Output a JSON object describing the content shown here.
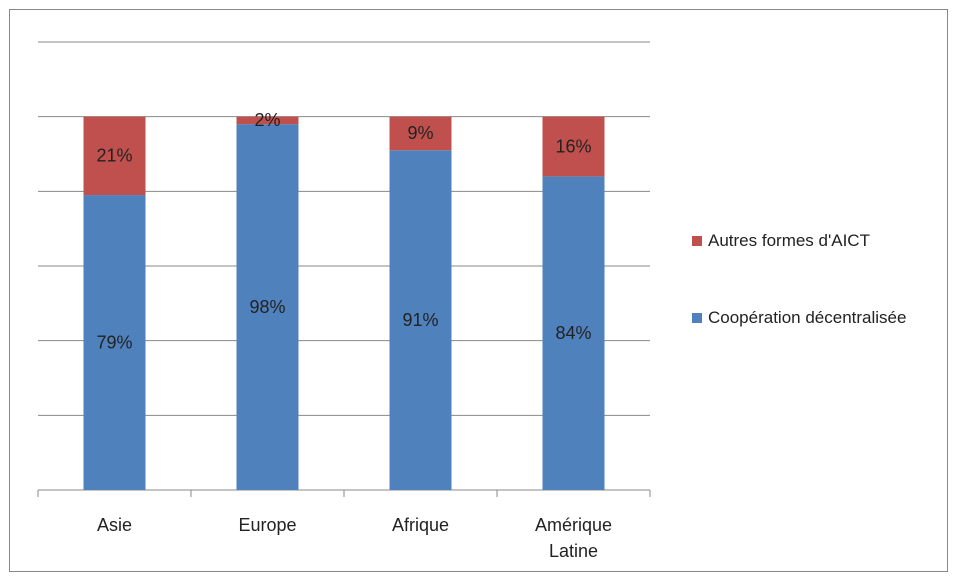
{
  "chart_data": {
    "type": "stacked_bar",
    "categories": [
      "Asie",
      "Europe",
      "Afrique",
      "Amérique Latine"
    ],
    "series": [
      {
        "name": "Coopération décentralisée",
        "color": "#4f81bd",
        "values": [
          79,
          98,
          91,
          84
        ],
        "value_labels": [
          "79%",
          "98%",
          "91%",
          "84%"
        ]
      },
      {
        "name": "Autres formes d'AICT",
        "color": "#c0504d",
        "values": [
          21,
          2,
          9,
          16
        ],
        "value_labels": [
          "21%",
          "2%",
          "9%",
          "16%"
        ]
      }
    ],
    "ylim": [
      0,
      120
    ],
    "yticks": [
      0,
      20,
      40,
      60,
      80,
      100,
      120
    ],
    "grid": true,
    "legend": "right"
  }
}
